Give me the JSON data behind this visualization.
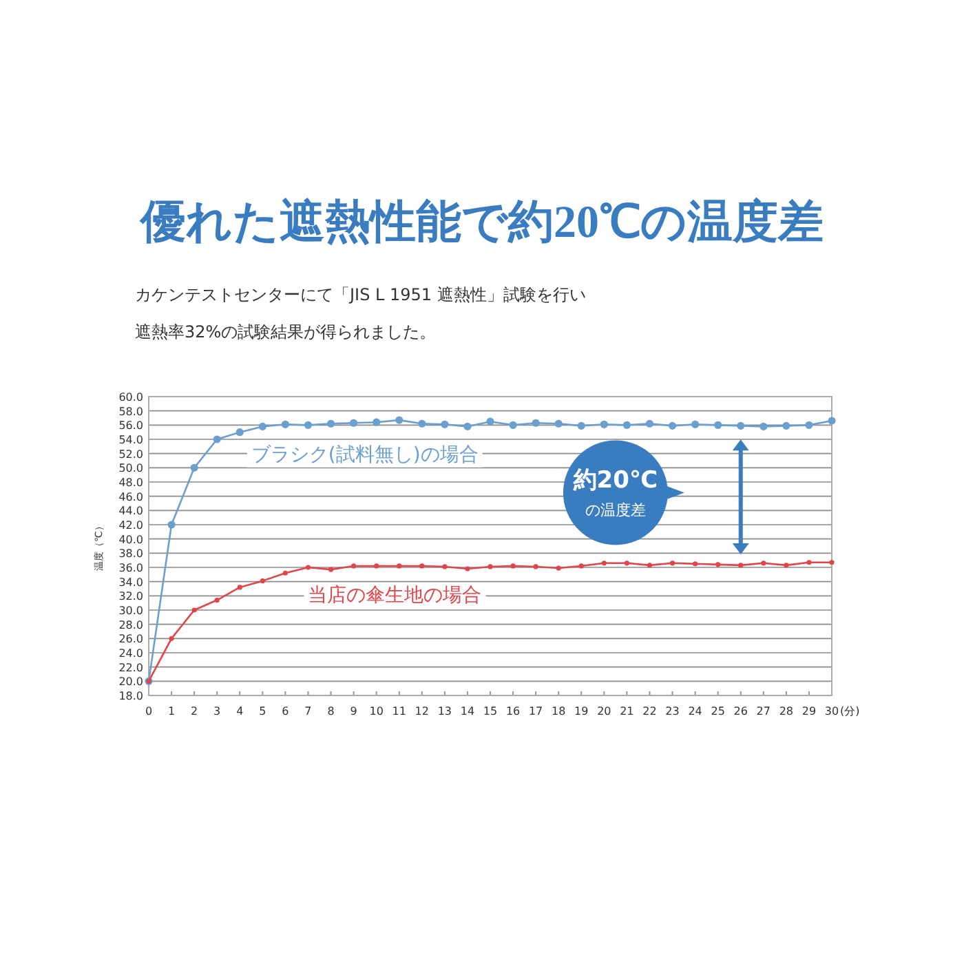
{
  "chart_data": {
    "type": "line",
    "title": "優れた遮熱性能で約20℃の温度差",
    "subtitle": "カケンテストセンターにて「JIS L 1951 遮熱性」試験を行い",
    "xlabel": "(分)",
    "ylabel": "温度（℃）",
    "x": [
      0,
      1,
      2,
      3,
      4,
      5,
      6,
      7,
      8,
      9,
      10,
      11,
      12,
      13,
      14,
      15,
      16,
      17,
      18,
      19,
      20,
      21,
      22,
      23,
      24,
      25,
      26,
      27,
      28,
      29,
      30
    ],
    "series": [
      {
        "name": "ブラシク(試料無し)の場合",
        "color": "#6a9fd0",
        "values": [
          20,
          42,
          50,
          54,
          55,
          55.8,
          56.1,
          56,
          56.2,
          56.3,
          56.4,
          56.7,
          56.2,
          56.1,
          55.8,
          56.5,
          56,
          56.3,
          56.2,
          55.9,
          56.1,
          56,
          56.2,
          55.9,
          56.1,
          56,
          55.9,
          55.8,
          55.9,
          56,
          56.6
        ]
      },
      {
        "name": "当店の傘生地の場合",
        "color": "#e0454a",
        "values": [
          20,
          26,
          30,
          31.4,
          33.2,
          34.1,
          35.2,
          36,
          35.7,
          36.2,
          36.2,
          36.2,
          36.2,
          36.1,
          35.8,
          36.1,
          36.2,
          36.1,
          35.9,
          36.2,
          36.6,
          36.6,
          36.3,
          36.6,
          36.5,
          36.4,
          36.3,
          36.6,
          36.3,
          36.7,
          36.7
        ]
      }
    ],
    "xlim": [
      0,
      30
    ],
    "xticks": [
      0,
      1,
      2,
      3,
      4,
      5,
      6,
      7,
      8,
      9,
      10,
      11,
      12,
      13,
      14,
      15,
      16,
      17,
      18,
      19,
      20,
      21,
      22,
      23,
      24,
      25,
      26,
      27,
      28,
      29,
      30
    ],
    "ylim": [
      18,
      60
    ],
    "yticks": [
      {
        "value": 18,
        "label": "18.0"
      },
      {
        "value": 20,
        "label": "20.0"
      },
      {
        "value": 22,
        "label": "22.0"
      },
      {
        "value": 24,
        "label": "24.0"
      },
      {
        "value": 26,
        "label": "26.0"
      },
      {
        "value": 28,
        "label": "28.0"
      },
      {
        "value": 30,
        "label": "30.0"
      },
      {
        "value": 32,
        "label": "32.0"
      },
      {
        "value": 34,
        "label": "34.0"
      },
      {
        "value": 36,
        "label": "36.0"
      },
      {
        "value": 38,
        "label": "38.0"
      },
      {
        "value": 40,
        "label": "40.0"
      },
      {
        "value": 42,
        "label": "42.0"
      },
      {
        "value": 44,
        "label": "44.0"
      },
      {
        "value": 46,
        "label": "46.0"
      },
      {
        "value": 48,
        "label": "48.0"
      },
      {
        "value": 50,
        "label": "50.0"
      },
      {
        "value": 52,
        "label": "52.0"
      },
      {
        "value": 54,
        "label": "54.0"
      },
      {
        "value": 56,
        "label": "56.0"
      },
      {
        "value": 58,
        "label": "58.0"
      },
      {
        "value": 60,
        "label": "60.0"
      }
    ],
    "grid": "y",
    "marker": "circle",
    "line_style": "solid",
    "annotations": [
      "約20℃\nの温度差",
      "遮熱率32%の試験結果が得られました。"
    ]
  }
}
